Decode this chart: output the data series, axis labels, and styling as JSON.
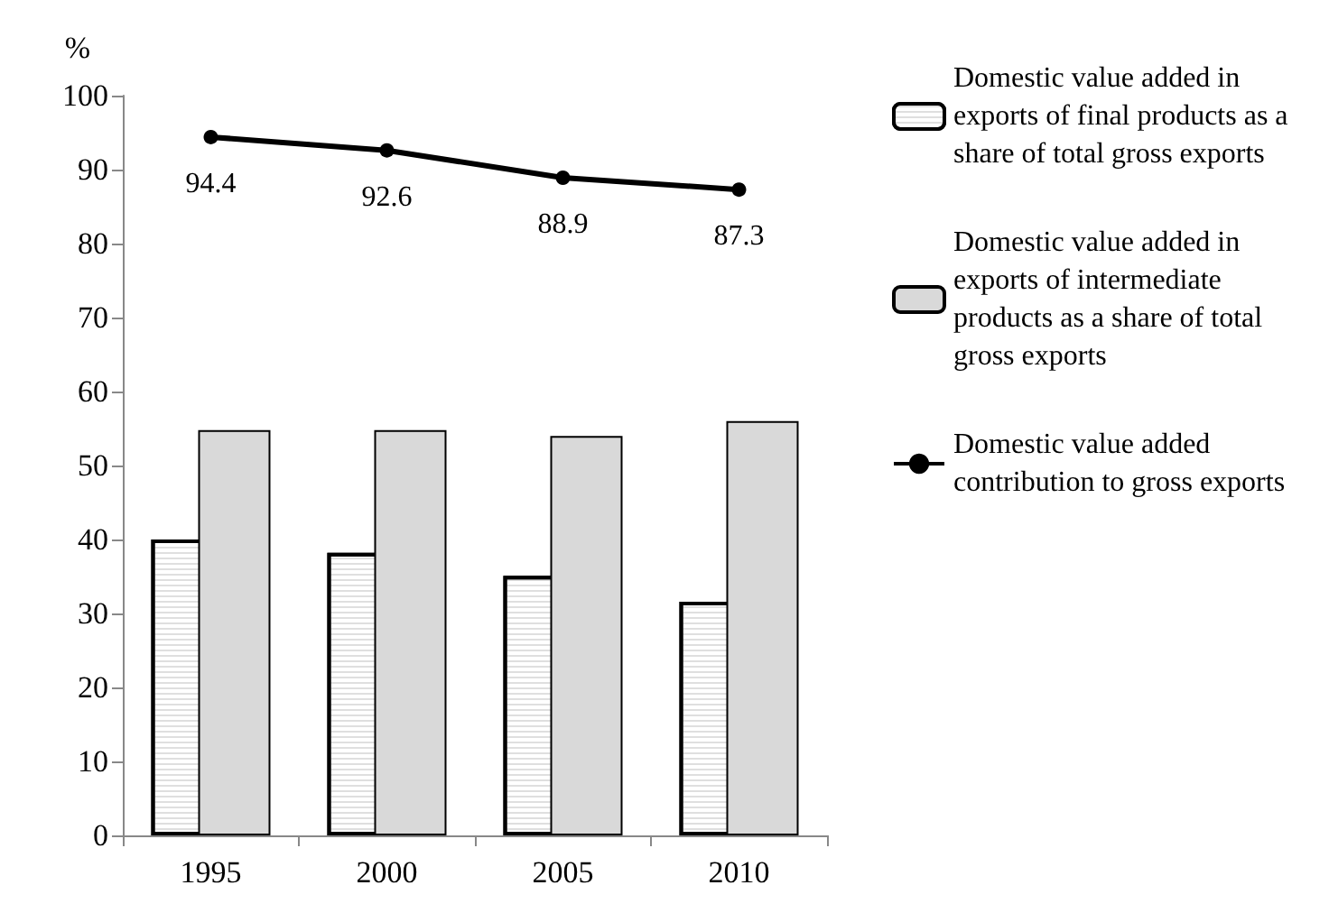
{
  "chart_data": {
    "type": "bar",
    "ylabel": "%",
    "categories": [
      "1995",
      "2000",
      "2005",
      "2010"
    ],
    "series": [
      {
        "name": "Domestic value added in exports of final products as a share of total gross exports",
        "color": "#ffffff",
        "values": [
          40,
          38.2,
          35.1,
          31.6
        ]
      },
      {
        "name": "Domestic value added in exports of intermediate products as a share of total gross exports",
        "color": "#d9d9d9",
        "values": [
          54.8,
          54.8,
          54,
          56
        ]
      },
      {
        "name": "Domestic value added contribution to gross exports",
        "type": "line",
        "color": "#000000",
        "values": [
          94.4,
          92.6,
          88.9,
          87.3
        ],
        "value_labels": [
          "94.4",
          "92.6",
          "88.9",
          "87.3"
        ]
      }
    ],
    "ylim": [
      0,
      100
    ],
    "yticks": [
      0,
      10,
      20,
      30,
      40,
      50,
      60,
      70,
      80,
      90,
      100
    ],
    "grid": false,
    "legend": "right",
    "marker": "circle"
  }
}
